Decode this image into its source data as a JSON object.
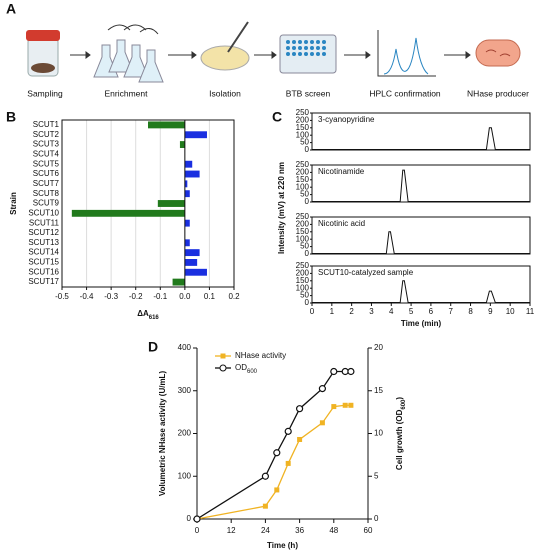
{
  "panel_labels": [
    "A",
    "B",
    "C",
    "D"
  ],
  "workflow": {
    "steps": [
      "Sampling",
      "Enrichment",
      "Isolation",
      "BTB screen",
      "HPLC confirmation",
      "NHase producer"
    ]
  },
  "chart_data": [
    {
      "type": "hbar",
      "ylabel": "Strain",
      "xlabel": "ΔA",
      "xlabel_sub": "616",
      "categories": [
        "SCUT1",
        "SCUT2",
        "SCUT3",
        "SCUT4",
        "SCUT5",
        "SCUT6",
        "SCUT7",
        "SCUT8",
        "SCUT9",
        "SCUT10",
        "SCUT11",
        "SCUT12",
        "SCUT13",
        "SCUT14",
        "SCUT15",
        "SCUT16",
        "SCUT17"
      ],
      "values": [
        -0.15,
        0.09,
        -0.02,
        0,
        0.03,
        0.06,
        0.01,
        0.02,
        -0.11,
        -0.46,
        0.02,
        0,
        0.02,
        0.06,
        0.05,
        0.09,
        -0.05
      ],
      "colors": [
        "#217a1c",
        "#1a2fe0",
        "#217a1c",
        "#1a2fe0",
        "#1a2fe0",
        "#1a2fe0",
        "#1a2fe0",
        "#1a2fe0",
        "#217a1c",
        "#217a1c",
        "#1a2fe0",
        "#1a2fe0",
        "#1a2fe0",
        "#1a2fe0",
        "#1a2fe0",
        "#1a2fe0",
        "#217a1c"
      ],
      "xlim": [
        -0.5,
        0.2
      ],
      "xticks": [
        -0.5,
        -0.4,
        -0.3,
        -0.2,
        -0.1,
        {
          "value": 0,
          "label": "0.0"
        },
        0.1,
        0.2
      ],
      "grid": true
    },
    {
      "type": "chromatogram",
      "ylabel": "Intensity (mV) at 220 nm",
      "xlabel": "Time (min)",
      "xlim": [
        0,
        11
      ],
      "xticks": [
        0,
        1,
        2,
        3,
        4,
        5,
        6,
        7,
        8,
        9,
        10,
        11
      ],
      "ylim": [
        0,
        250
      ],
      "yticks": [
        0,
        50,
        100,
        150,
        200,
        250
      ],
      "color": "#111111",
      "subplots": [
        {
          "title": "3-cyanopyridine",
          "x": [
            0,
            8.8,
            8.95,
            9.05,
            9.25,
            11
          ],
          "values": [
            3,
            3,
            150,
            150,
            3,
            3
          ]
        },
        {
          "title": "Nicotinamide",
          "x": [
            0,
            4.45,
            4.58,
            4.66,
            4.85,
            11
          ],
          "values": [
            3,
            3,
            215,
            215,
            3,
            3
          ]
        },
        {
          "title": "Nicotinic acid",
          "x": [
            0,
            3.75,
            3.88,
            3.96,
            4.15,
            11
          ],
          "values": [
            3,
            3,
            150,
            150,
            3,
            3
          ]
        },
        {
          "title": "SCUT10-catalyzed sample",
          "x": [
            0,
            4.45,
            4.58,
            4.66,
            4.85,
            8.8,
            8.95,
            9.05,
            9.25,
            11
          ],
          "values": [
            3,
            3,
            150,
            150,
            3,
            3,
            80,
            80,
            3,
            3
          ]
        }
      ]
    },
    {
      "type": "line",
      "xlabel": "Time (h)",
      "ylabel": "Volumetric NHase activity (U/mL)",
      "y2label": "Cell growth (OD",
      "y2label_sub": "600",
      "y2label_end": ")",
      "x": [
        0,
        24,
        28,
        32,
        36,
        44,
        48,
        52,
        54
      ],
      "xlim": [
        0,
        60
      ],
      "xticks": [
        0,
        12,
        24,
        36,
        48,
        60
      ],
      "ylim": [
        0,
        400
      ],
      "yticks": [
        0,
        100,
        200,
        300,
        400
      ],
      "y2lim": [
        0,
        20
      ],
      "y2ticks": [
        0,
        5,
        10,
        15,
        20
      ],
      "series": [
        {
          "name": "NHase activity",
          "color": "#f0b323",
          "marker": "square",
          "values": [
            0,
            30,
            68,
            130,
            186,
            225,
            263,
            266,
            266
          ]
        },
        {
          "name": "OD",
          "name_sub": "600",
          "color": "#111111",
          "marker": "circle",
          "axis": "y2",
          "values": [
            0,
            5,
            7.75,
            10.25,
            12.9,
            15.25,
            17.25,
            17.25,
            17.25
          ]
        }
      ]
    }
  ]
}
